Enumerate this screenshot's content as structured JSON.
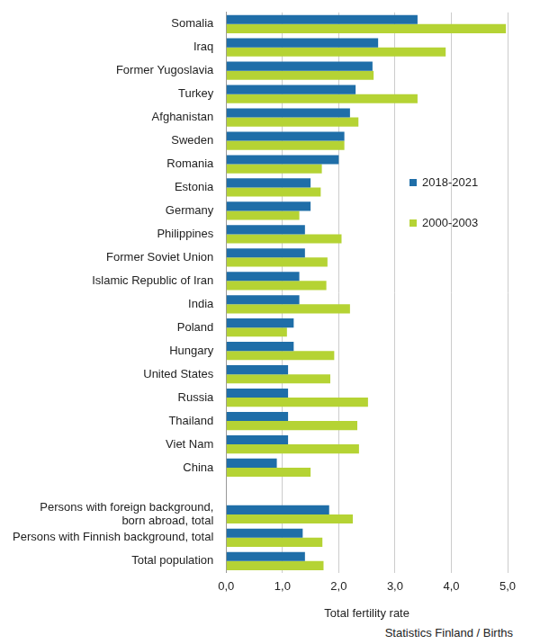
{
  "chart_data": {
    "type": "bar",
    "orientation": "horizontal",
    "x_label": "Total fertility rate",
    "source": "Statistics Finland / Births",
    "categories": [
      "Somalia",
      "Iraq",
      "Former Yugoslavia",
      "Turkey",
      "Afghanistan",
      "Sweden",
      "Romania",
      "Estonia",
      "Germany",
      "Philippines",
      "Former Soviet Union",
      "Islamic Republic of Iran",
      "India",
      "Poland",
      "Hungary",
      "United States",
      "Russia",
      "Thailand",
      "Viet Nam",
      "China",
      null,
      [
        "Persons with foreign background,",
        "born abroad, total"
      ],
      "Persons with Finnish background, total",
      "Total population"
    ],
    "series": [
      {
        "name": "2018-2021",
        "color": "#1f6ea8",
        "values": [
          3.4,
          2.7,
          2.6,
          2.3,
          2.2,
          2.1,
          2.0,
          1.5,
          1.5,
          1.4,
          1.4,
          1.3,
          1.3,
          1.2,
          1.2,
          1.1,
          1.1,
          1.1,
          1.1,
          0.9,
          null,
          1.83,
          1.36,
          1.4
        ]
      },
      {
        "name": "2000-2003",
        "color": "#b5d334",
        "values": [
          4.97,
          3.9,
          2.62,
          3.4,
          2.35,
          2.1,
          1.7,
          1.68,
          1.3,
          2.05,
          1.8,
          1.78,
          2.2,
          1.08,
          1.92,
          1.85,
          2.52,
          2.33,
          2.36,
          1.5,
          null,
          2.25,
          1.71,
          1.73
        ]
      }
    ],
    "xlim": [
      0,
      5
    ],
    "xticks": [
      {
        "value": 0,
        "label": "0,0"
      },
      {
        "value": 1,
        "label": "1,0"
      },
      {
        "value": 2,
        "label": "2,0"
      },
      {
        "value": 3,
        "label": "3,0"
      },
      {
        "value": 4,
        "label": "4,0"
      },
      {
        "value": 5,
        "label": "5,0"
      }
    ],
    "grid": true,
    "legend": "right"
  }
}
